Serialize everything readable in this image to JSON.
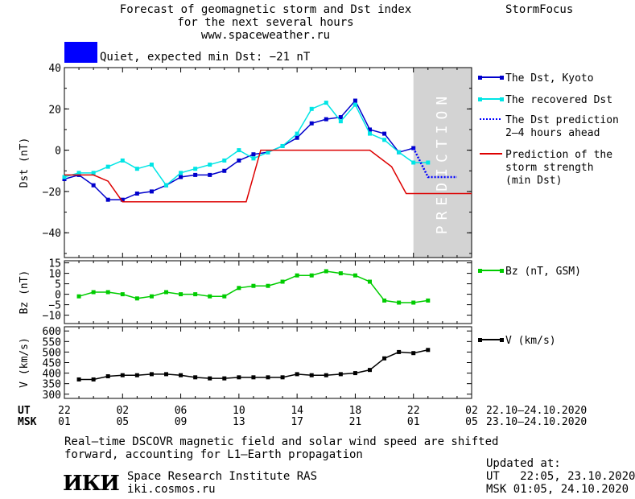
{
  "header": {
    "title_lines": [
      "Forecast of geomagnetic storm and Dst index",
      "for the next several hours",
      "www.spaceweather.ru"
    ],
    "brand": "StormFocus",
    "status_color": "#0000ff",
    "status_text": "Quiet, expected min Dst: −21 nT"
  },
  "chart_data": [
    {
      "type": "line",
      "ylabel": "Dst (nT)",
      "ylim": [
        -52,
        40
      ],
      "yticks": [
        40,
        20,
        0,
        -20,
        -40
      ],
      "xlim": [
        0,
        28
      ],
      "prediction_band": [
        24,
        28
      ],
      "prediction_label": "PREDICTION",
      "series": [
        {
          "name": "The Dst, Kyoto",
          "color": "#0000cc",
          "marker": "square",
          "x": [
            0,
            1,
            2,
            3,
            4,
            5,
            6,
            7,
            8,
            9,
            10,
            11,
            12,
            13,
            14,
            15,
            16,
            17,
            18,
            19,
            20,
            21,
            22,
            23,
            24
          ],
          "y": [
            -14,
            -12,
            -17,
            -24,
            -24,
            -21,
            -20,
            -17,
            -13,
            -12,
            -12,
            -10,
            -5,
            -2,
            -1,
            2,
            6,
            13,
            15,
            16,
            24,
            10,
            8,
            -1,
            1
          ]
        },
        {
          "name": "The recovered Dst",
          "color": "#00e5e5",
          "marker": "square",
          "x": [
            0,
            1,
            2,
            3,
            4,
            5,
            6,
            7,
            8,
            9,
            10,
            11,
            12,
            13,
            14,
            15,
            16,
            17,
            18,
            19,
            20,
            21,
            22,
            23,
            24,
            25
          ],
          "y": [
            -13,
            -11,
            -11,
            -8,
            -5,
            -9,
            -7,
            -17,
            -11,
            -9,
            -7,
            -5,
            0,
            -4,
            -1,
            2,
            8,
            20,
            23,
            14,
            22,
            8,
            5,
            -1,
            -6,
            -6
          ]
        },
        {
          "name": "The Dst prediction 2–4 hours ahead",
          "color": "#0000ff",
          "style": "dotted",
          "x": [
            24,
            25,
            26,
            27
          ],
          "y": [
            1,
            -13,
            -13,
            -13
          ]
        },
        {
          "name": "Prediction of the storm strength (min Dst)",
          "color": "#dd0000",
          "x": [
            0,
            2,
            3,
            4,
            12.5,
            13.5,
            21,
            22.5,
            23.5,
            28
          ],
          "y": [
            -12,
            -12,
            -15,
            -25,
            -25,
            0,
            0,
            -8,
            -21,
            -21
          ]
        }
      ]
    },
    {
      "type": "line",
      "ylabel": "Bz (nT)",
      "ylim": [
        -14,
        16
      ],
      "yticks": [
        15,
        10,
        5,
        0,
        -5,
        -10
      ],
      "xlim": [
        0,
        28
      ],
      "series": [
        {
          "name": "Bz (nT, GSM)",
          "color": "#00cc00",
          "marker": "square",
          "x": [
            1,
            2,
            3,
            4,
            5,
            6,
            7,
            8,
            9,
            10,
            11,
            12,
            13,
            14,
            15,
            16,
            17,
            18,
            19,
            20,
            21,
            22,
            23,
            24,
            25
          ],
          "y": [
            -1,
            1,
            1,
            0,
            -2,
            -1,
            1,
            0,
            0,
            -1,
            -1,
            3,
            4,
            4,
            6,
            9,
            9,
            11,
            10,
            9,
            6,
            -3,
            -4,
            -4,
            -3
          ]
        }
      ]
    },
    {
      "type": "line",
      "ylabel": "V (km/s)",
      "ylim": [
        280,
        620
      ],
      "yticks": [
        600,
        550,
        500,
        450,
        400,
        350,
        300
      ],
      "xlim": [
        0,
        28
      ],
      "series": [
        {
          "name": "V (km/s)",
          "color": "#000000",
          "marker": "square",
          "x": [
            1,
            2,
            3,
            4,
            5,
            6,
            7,
            8,
            9,
            10,
            11,
            12,
            13,
            14,
            15,
            16,
            17,
            18,
            19,
            20,
            21,
            22,
            23,
            24,
            25
          ],
          "y": [
            370,
            370,
            385,
            390,
            390,
            395,
            395,
            390,
            380,
            375,
            375,
            380,
            380,
            380,
            380,
            395,
            390,
            390,
            395,
            400,
            415,
            470,
            500,
            495,
            510
          ]
        }
      ]
    }
  ],
  "axis": {
    "ut_label": "UT",
    "msk_label": "MSK",
    "ut_ticks": [
      "22",
      "02",
      "06",
      "10",
      "14",
      "18",
      "22",
      "02"
    ],
    "msk_ticks": [
      "01",
      "05",
      "09",
      "13",
      "17",
      "21",
      "01",
      "05"
    ],
    "ut_range": "22.10–24.10.2020",
    "msk_range": "23.10–24.10.2020"
  },
  "footer": {
    "note_lines": [
      "Real–time DSCOVR magnetic field and solar wind speed are shifted",
      "forward, accounting for L1–Earth propagation"
    ],
    "logo_text": "ИКИ",
    "institute": "Space Research Institute RAS",
    "site": "iki.cosmos.ru",
    "updated_label": "Updated at:",
    "updated_ut": "UT   22:05, 23.10.2020",
    "updated_msk": "MSK 01:05, 24.10.2020"
  }
}
